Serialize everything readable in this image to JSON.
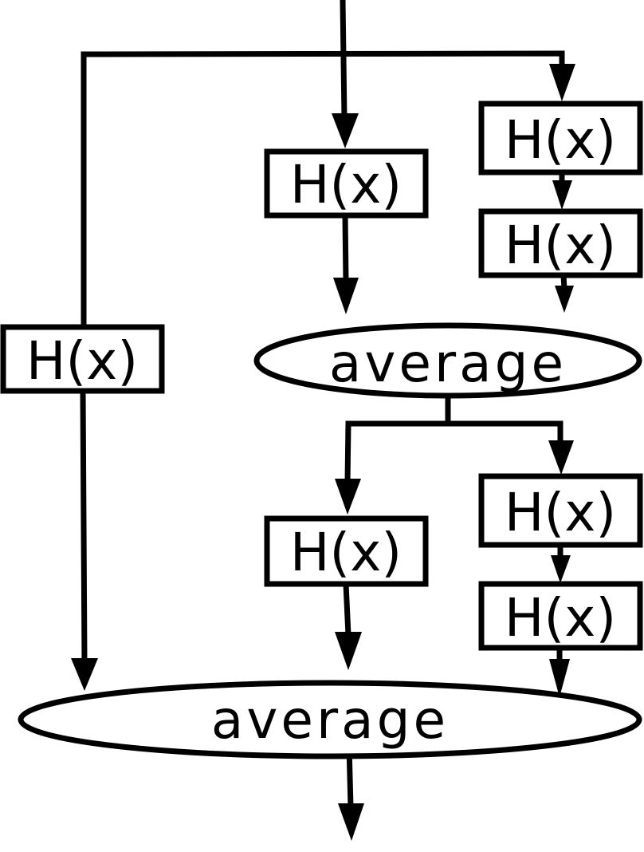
{
  "diagram": {
    "nodes": {
      "h_left": "H(x)",
      "h_mid_top": "H(x)",
      "h_right_top_1": "H(x)",
      "h_right_top_2": "H(x)",
      "avg_top": "average",
      "h_mid_bottom": "H(x)",
      "h_right_bottom_1": "H(x)",
      "h_right_bottom_2": "H(x)",
      "avg_bottom": "average"
    },
    "line_color": "#000000",
    "background": "#ffffff"
  }
}
